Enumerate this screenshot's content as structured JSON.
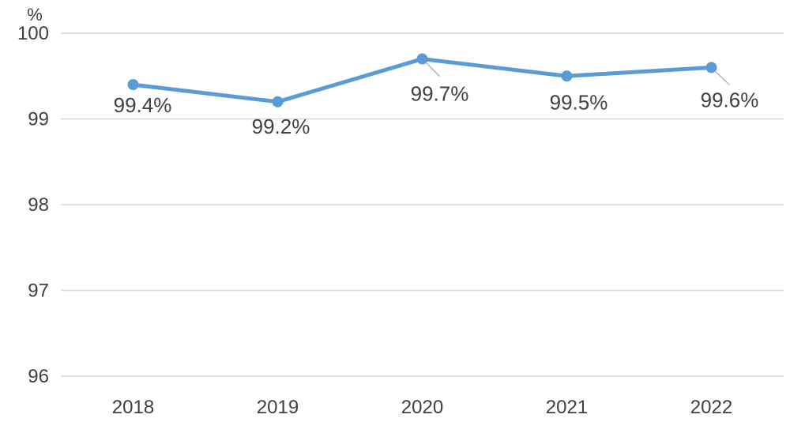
{
  "colors": {
    "series": "#5B9BD5",
    "gridline": "#D9D9D9",
    "text": "#404040"
  },
  "chart_data": {
    "type": "line",
    "title": "",
    "xlabel": "",
    "ylabel": "",
    "y_unit": "%",
    "categories": [
      "2018",
      "2019",
      "2020",
      "2021",
      "2022"
    ],
    "series": [
      {
        "values": [
          99.4,
          99.2,
          99.7,
          99.5,
          99.6
        ],
        "labels": [
          "99.4%",
          "99.2%",
          "99.7%",
          "99.5%",
          "99.6%"
        ]
      }
    ],
    "ylim": [
      96,
      100
    ],
    "yticks": [
      "96",
      "97",
      "98",
      "99",
      "100"
    ],
    "grid": true,
    "legend": "none"
  }
}
